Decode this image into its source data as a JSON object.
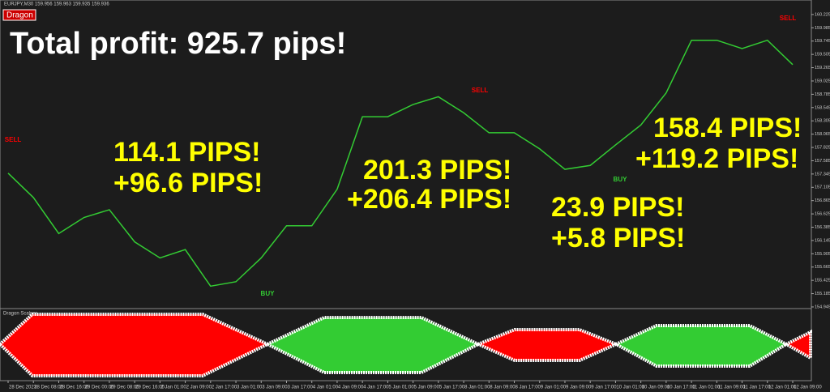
{
  "chart_data": {
    "type": "line",
    "title": "Total profit: 925.7 pips!",
    "symbol_info": "EURJPY,M30  159.956 159.963 159.935 159.936",
    "indicator_button": "Dragon",
    "indicator_name": "Dragon Scalper",
    "categories": [
      "28 Dec 2023",
      "28 Dec 08:00",
      "28 Dec 16:00",
      "29 Dec 00:00",
      "29 Dec 08:00",
      "29 Dec 16:00",
      "2 Jan 01:00",
      "2 Jan 09:00",
      "2 Jan 17:00",
      "3 Jan 01:00",
      "3 Jan 09:00",
      "3 Jan 17:00",
      "4 Jan 01:00",
      "4 Jan 09:00",
      "4 Jan 17:00",
      "5 Jan 01:00",
      "5 Jan 09:00",
      "5 Jan 17:00",
      "8 Jan 01:00",
      "8 Jan 09:00",
      "8 Jan 17:00",
      "9 Jan 01:00",
      "9 Jan 09:00",
      "9 Jan 17:00",
      "10 Jan 01:00",
      "10 Jan 09:00",
      "10 Jan 17:00",
      "11 Jan 01:00",
      "11 Jan 09:00",
      "11 Jan 17:00",
      "12 Jan 01:00",
      "12 Jan 09:00"
    ],
    "series": [
      {
        "name": "EURJPY",
        "color": "#33cc33",
        "values": [
          157.36,
          156.92,
          156.27,
          156.56,
          156.7,
          156.12,
          155.83,
          155.98,
          155.32,
          155.4,
          155.83,
          156.41,
          156.41,
          157.07,
          158.38,
          158.38,
          158.6,
          158.74,
          158.45,
          158.09,
          158.09,
          157.8,
          157.43,
          157.5,
          157.87,
          158.23,
          158.81,
          159.76,
          159.76,
          159.61,
          159.76,
          159.32
        ]
      }
    ],
    "ylim": [
      154.93,
      160.37
    ],
    "yticks": [
      160.225,
      159.985,
      159.745,
      159.505,
      159.265,
      159.025,
      158.785,
      158.545,
      158.305,
      158.065,
      157.825,
      157.585,
      157.345,
      157.105,
      156.865,
      156.625,
      156.385,
      156.145,
      155.905,
      155.665,
      155.425,
      155.185,
      154.945
    ],
    "signals": [
      "SELL",
      "BUY",
      "SELL",
      "BUY",
      "SELL"
    ],
    "annotations": [
      "114.1 PIPS!",
      "+96.6 PIPS!",
      "201.3 PIPS!",
      "+206.4 PIPS!",
      "23.9 PIPS!",
      "+5.8 PIPS!",
      "158.4 PIPS!",
      "+119.2 PIPS!"
    ]
  }
}
